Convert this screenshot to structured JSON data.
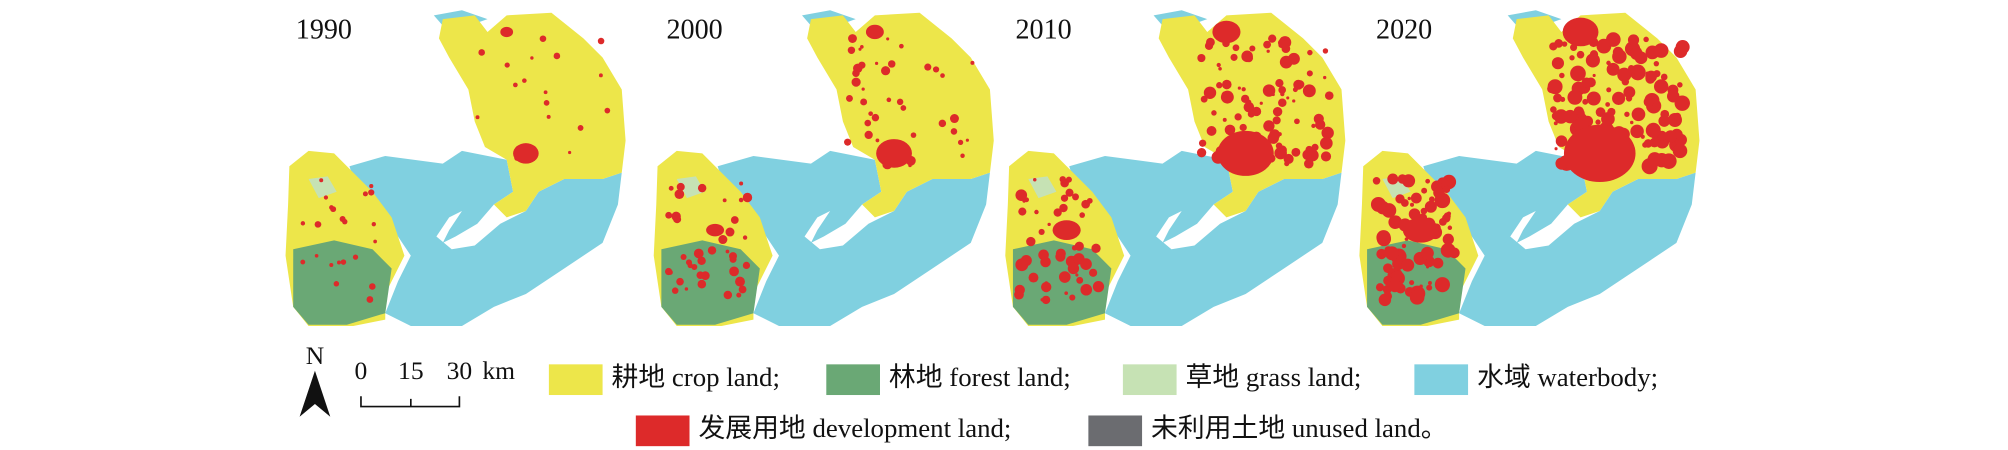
{
  "panels": [
    {
      "year": "1990"
    },
    {
      "year": "2000"
    },
    {
      "year": "2010"
    },
    {
      "year": "2020"
    }
  ],
  "north": "N",
  "scale_bar": {
    "ticks": [
      "0",
      "15",
      "30"
    ],
    "unit": "km"
  },
  "legend": [
    {
      "label": "耕地 crop land;",
      "color": "#ede64a"
    },
    {
      "label": "林地 forest land;",
      "color": "#6aa875"
    },
    {
      "label": "草地 grass land;",
      "color": "#c6e2b4"
    },
    {
      "label": "水域 waterbody;",
      "color": "#80d0e0"
    },
    {
      "label": "发展用地 development land;",
      "color": "#dd2a2a"
    },
    {
      "label": "未利用土地 unused land。",
      "color": "#6b6c70"
    }
  ]
}
